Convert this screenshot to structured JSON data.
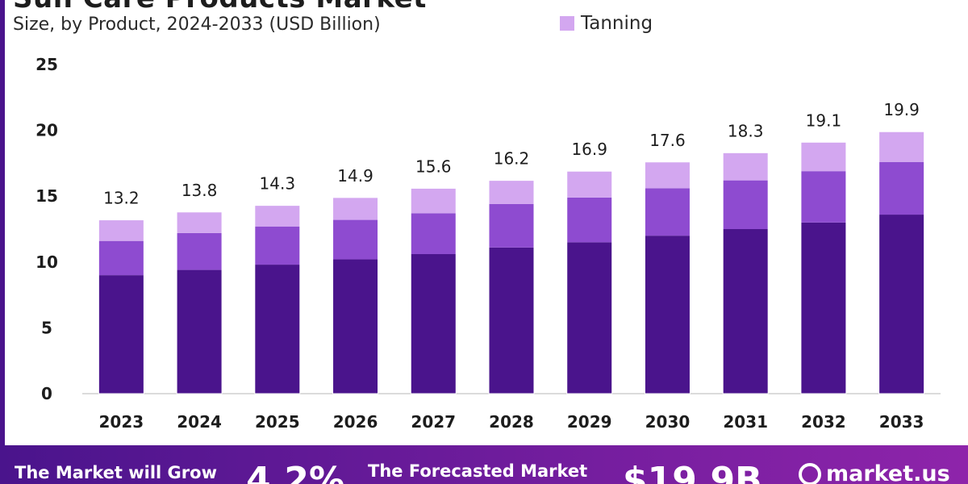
{
  "header": {
    "title": "Sun Care Products Market",
    "subtitle": "Size, by Product, 2024-2033 (USD Billion)"
  },
  "colors": {
    "series_base": "#4a148c",
    "series_mid": "#8e4bd0",
    "series_tanning": "#d3a7f0",
    "footer_gradient_start": "#4a148c",
    "footer_gradient_end": "#8e24aa"
  },
  "chart_data": {
    "type": "bar",
    "stacked": true,
    "categories": [
      "2023",
      "2024",
      "2025",
      "2026",
      "2027",
      "2028",
      "2029",
      "2030",
      "2031",
      "2032",
      "2033"
    ],
    "series": [
      {
        "values": [
          9.0,
          9.4,
          9.8,
          10.2,
          10.6,
          11.1,
          11.5,
          12.0,
          12.5,
          13.0,
          13.6
        ]
      },
      {
        "values": [
          2.6,
          2.8,
          2.9,
          3.0,
          3.1,
          3.3,
          3.4,
          3.6,
          3.7,
          3.9,
          4.0
        ]
      },
      {
        "name": "Tanning",
        "values": [
          1.6,
          1.6,
          1.6,
          1.7,
          1.9,
          1.8,
          2.0,
          2.0,
          2.1,
          2.2,
          2.3
        ]
      }
    ],
    "totals": [
      13.2,
      13.8,
      14.3,
      14.9,
      15.6,
      16.2,
      16.9,
      17.6,
      18.3,
      19.1,
      19.9
    ],
    "total_labels": [
      "13.2",
      "13.8",
      "14.3",
      "14.9",
      "15.6",
      "16.2",
      "16.9",
      "17.6",
      "18.3",
      "19.1",
      "19.9"
    ],
    "yticks": [
      0,
      5,
      10,
      15,
      20,
      25
    ],
    "ylim": [
      0,
      25
    ],
    "grid": false,
    "legend_position": "top"
  },
  "footer": {
    "text_grow": "The Market will Grow",
    "cagr": "4.2%",
    "text_forecast": "The Forecasted Market",
    "value": "$19.9B",
    "brand": "market.us"
  }
}
